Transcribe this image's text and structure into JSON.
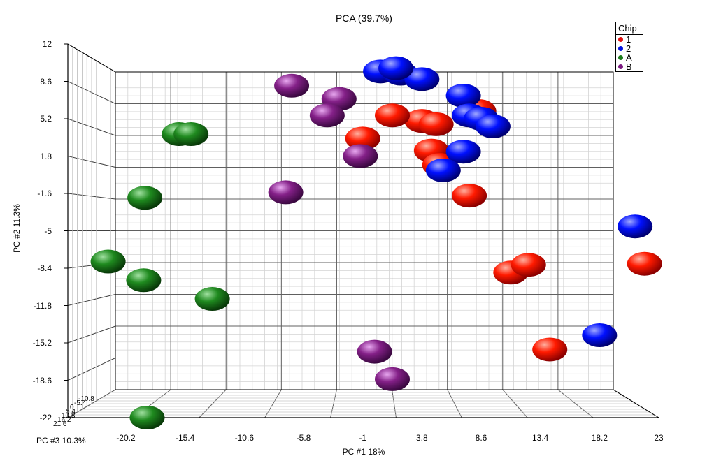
{
  "chart_data": {
    "type": "scatter",
    "title": "PCA (39.7%)",
    "xlabel": "PC #1   18%",
    "ylabel": "PC #2 11.3%",
    "zlabel": "PC #3 10.3%",
    "xlim": [
      -22,
      23
    ],
    "ylim": [
      -22,
      12
    ],
    "xticks": [
      "-20.2",
      "-15.4",
      "-10.6",
      "-5.8",
      "-1",
      "3.8",
      "8.6",
      "13.4",
      "18.2",
      "23"
    ],
    "yticks": [
      "12",
      "8.6",
      "5.2",
      "1.8",
      "-1.6",
      "-5",
      "-8.4",
      "-11.8",
      "-15.2",
      "-18.6",
      "-22"
    ],
    "grid": true,
    "legend": {
      "title": "Chip",
      "placement": "top-right",
      "entries": [
        "1",
        "2",
        "A",
        "B"
      ]
    },
    "series": [
      {
        "name": "1",
        "color": "#e01010",
        "points": [
          {
            "x": 3.0,
            "y": 5.0
          },
          {
            "x": 4.2,
            "y": 4.7
          },
          {
            "x": 3.8,
            "y": 2.3
          },
          {
            "x": 4.5,
            "y": 1.0
          },
          {
            "x": 0.5,
            "y": 5.5
          },
          {
            "x": -2.0,
            "y": 3.4
          },
          {
            "x": 7.0,
            "y": -1.8
          },
          {
            "x": 10.5,
            "y": -8.8
          },
          {
            "x": 12.0,
            "y": -8.1
          },
          {
            "x": 13.8,
            "y": -15.8
          },
          {
            "x": 21.8,
            "y": -8.0
          },
          {
            "x": 7.8,
            "y": 5.9
          }
        ]
      },
      {
        "name": "2",
        "color": "#0010e0",
        "points": [
          {
            "x": -0.5,
            "y": 9.5
          },
          {
            "x": 1.2,
            "y": 9.3
          },
          {
            "x": 3.0,
            "y": 8.8
          },
          {
            "x": 6.5,
            "y": 7.3
          },
          {
            "x": 7.0,
            "y": 5.5
          },
          {
            "x": 8.0,
            "y": 5.2
          },
          {
            "x": 9.0,
            "y": 4.5
          },
          {
            "x": 6.5,
            "y": 2.2
          },
          {
            "x": 4.8,
            "y": 0.5
          },
          {
            "x": 21.0,
            "y": -4.6
          },
          {
            "x": 18.0,
            "y": -14.5
          },
          {
            "x": 0.8,
            "y": 9.8
          }
        ]
      },
      {
        "name": "A",
        "color": "#1a7a1a",
        "points": [
          {
            "x": -17.5,
            "y": 3.8
          },
          {
            "x": -16.5,
            "y": 3.8
          },
          {
            "x": -20.4,
            "y": -2.0
          },
          {
            "x": -20.5,
            "y": -9.5
          },
          {
            "x": -14.7,
            "y": -11.2
          },
          {
            "x": -23.5,
            "y": -7.8
          },
          {
            "x": -20.2,
            "y": -22.0
          }
        ]
      },
      {
        "name": "B",
        "color": "#7a1a80",
        "points": [
          {
            "x": -8.0,
            "y": 8.2
          },
          {
            "x": -4.0,
            "y": 7.0
          },
          {
            "x": -5.0,
            "y": 5.5
          },
          {
            "x": -2.2,
            "y": 1.8
          },
          {
            "x": -8.5,
            "y": -1.5
          },
          {
            "x": -1.0,
            "y": -16.0
          },
          {
            "x": 0.5,
            "y": -18.5
          }
        ]
      }
    ]
  }
}
